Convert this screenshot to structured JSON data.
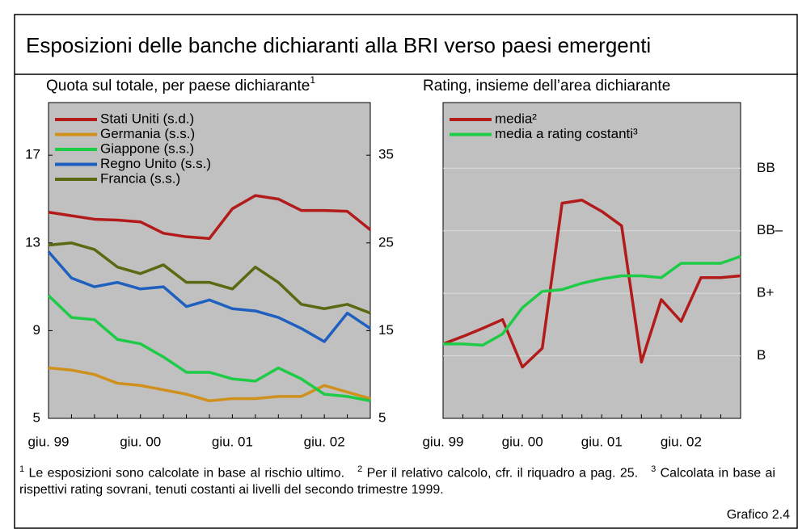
{
  "title": "Esposizioni delle banche dichiaranti alla BRI verso paesi emergenti",
  "chart_data": [
    {
      "type": "line",
      "title": "Quota sul totale, per paese dichiarante",
      "title_note": "1",
      "categories": [
        "giu. 99",
        null,
        null,
        null,
        "giu. 00",
        null,
        null,
        null,
        "giu. 01",
        null,
        null,
        null,
        "giu. 02",
        null,
        null
      ],
      "series": [
        {
          "name": "Stati Uniti (s.d.)",
          "color": "#b31b1b",
          "axis": "y2",
          "values": [
            28.5,
            28.1,
            27.7,
            27.6,
            27.4,
            26.1,
            25.7,
            25.5,
            28.9,
            30.4,
            30.0,
            28.7,
            28.7,
            28.6,
            26.5
          ]
        },
        {
          "name": "Germania (s.s.)",
          "color": "#d0901c",
          "values": [
            7.3,
            7.2,
            7.0,
            6.6,
            6.5,
            6.3,
            6.1,
            5.8,
            5.9,
            5.9,
            6.0,
            6.0,
            6.5,
            6.2,
            5.9
          ]
        },
        {
          "name": "Giappone (s.s.)",
          "color": "#1ecb46",
          "values": [
            10.6,
            9.6,
            9.5,
            8.6,
            8.4,
            7.8,
            7.1,
            7.1,
            6.8,
            6.7,
            7.3,
            6.8,
            6.1,
            6.0,
            5.8
          ]
        },
        {
          "name": "Regno Unito (s.s.)",
          "color": "#1f5fbf",
          "values": [
            12.6,
            11.4,
            11.0,
            11.2,
            10.9,
            11.0,
            10.1,
            10.4,
            10.0,
            9.9,
            9.6,
            9.1,
            8.5,
            9.8,
            9.1
          ]
        },
        {
          "name": "Francia (s.s.)",
          "color": "#5a6a12",
          "values": [
            12.9,
            13.0,
            12.7,
            11.9,
            11.6,
            12.0,
            11.2,
            11.2,
            10.9,
            11.9,
            11.2,
            10.2,
            10.0,
            10.2,
            9.8
          ]
        }
      ],
      "ylim": [
        5,
        19.4
      ],
      "yticks": [
        5,
        9,
        13,
        17
      ],
      "y2lim": [
        5,
        41
      ],
      "y2ticks": [
        5,
        15,
        25,
        35
      ],
      "grid": false,
      "legend": "upper left"
    },
    {
      "type": "line",
      "title": "Rating, insieme dell’area dichiarante",
      "categories": [
        "giu. 99",
        null,
        null,
        null,
        "giu. 00",
        null,
        null,
        null,
        "giu. 01",
        null,
        null,
        null,
        "giu. 02",
        null,
        null,
        null
      ],
      "series": [
        {
          "name": "media²",
          "color": "#b31b1b",
          "values": [
            1.19,
            1.31,
            1.44,
            1.58,
            0.82,
            1.12,
            3.44,
            3.49,
            3.31,
            3.08,
            0.9,
            1.9,
            1.55,
            2.25,
            2.25,
            2.28
          ]
        },
        {
          "name": "media a rating costanti³",
          "color": "#1ecb46",
          "values": [
            1.19,
            1.19,
            1.17,
            1.35,
            1.77,
            2.03,
            2.06,
            2.16,
            2.23,
            2.28,
            2.28,
            2.25,
            2.48,
            2.48,
            2.48,
            2.59
          ]
        }
      ],
      "ylim": [
        0,
        5.05
      ],
      "yticks": [
        {
          "value": 1,
          "label": "B"
        },
        {
          "value": 2,
          "label": "B+"
        },
        {
          "value": 3,
          "label": "BB–"
        },
        {
          "value": 4,
          "label": "BB"
        }
      ],
      "yaxis_side": "right",
      "grid": true,
      "legend": "upper left"
    }
  ],
  "footnotes": [
    {
      "mark": "1",
      "text": "Le esposizioni sono calcolate in base al rischio ultimo."
    },
    {
      "mark": "2",
      "text": "Per il relativo calcolo, cfr. il riquadro a pag. 25."
    },
    {
      "mark": "3",
      "text": "Calcolata in base ai rispettivi rating sovrani, tenuti costanti ai livelli del secondo trimestre 1999."
    }
  ],
  "figure_label": "Grafico 2.4"
}
